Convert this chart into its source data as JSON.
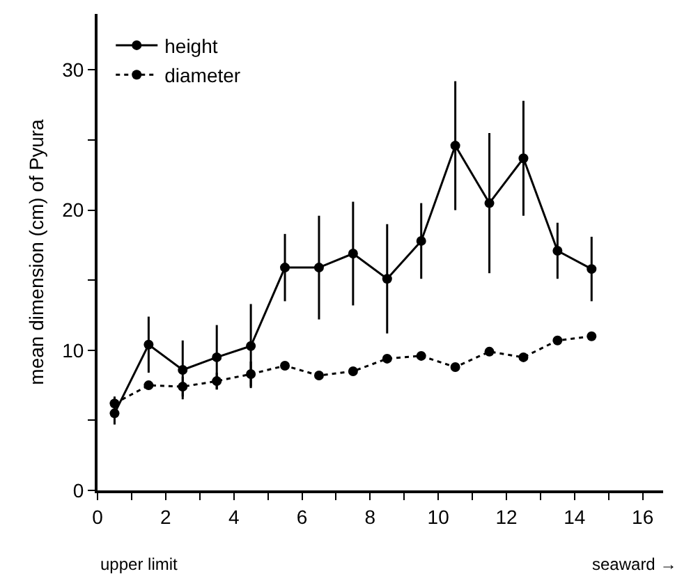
{
  "chart_data": {
    "type": "line",
    "ylabel": "mean dimension (cm) of Pyura",
    "x": [
      0.5,
      1.5,
      2.5,
      3.5,
      4.5,
      5.5,
      6.5,
      7.5,
      8.5,
      9.5,
      10.5,
      11.5,
      12.5,
      13.5,
      14.5
    ],
    "series": [
      {
        "name": "height",
        "color": "#000000",
        "line_style": "solid",
        "values": [
          5.5,
          10.4,
          8.6,
          9.5,
          10.3,
          15.9,
          15.9,
          16.9,
          15.1,
          17.8,
          24.6,
          20.5,
          23.7,
          17.1,
          15.8
        ],
        "errors": [
          0.8,
          2.0,
          2.1,
          2.3,
          3.0,
          2.4,
          3.7,
          3.7,
          3.9,
          2.7,
          4.6,
          5.0,
          4.1,
          2.0,
          2.3
        ]
      },
      {
        "name": "diameter",
        "color": "#000000",
        "line_style": "dotted",
        "values": [
          6.2,
          7.5,
          7.4,
          7.8,
          8.3,
          8.9,
          8.2,
          8.5,
          9.4,
          9.6,
          8.8,
          9.9,
          9.5,
          10.7,
          11.0
        ],
        "errors": [
          0.5,
          null,
          0.7,
          0.6,
          0.9,
          null,
          null,
          null,
          null,
          null,
          null,
          null,
          null,
          null,
          null
        ]
      }
    ],
    "xlim": [
      0,
      16.6
    ],
    "xticks": [
      0,
      {
        "value": 1,
        "label": null
      },
      2,
      {
        "value": 3,
        "label": null
      },
      4,
      {
        "value": 5,
        "label": null
      },
      6,
      {
        "value": 7,
        "label": null
      },
      8,
      {
        "value": 9,
        "label": null
      },
      10,
      {
        "value": 11,
        "label": null
      },
      12,
      {
        "value": 13,
        "label": null
      },
      14,
      {
        "value": 15,
        "label": null
      },
      16
    ],
    "ylim": [
      0,
      34
    ],
    "yticks": [
      0,
      {
        "value": 5,
        "label": null
      },
      10,
      {
        "value": 15,
        "label": null
      },
      20,
      {
        "value": 25,
        "label": null
      },
      30
    ],
    "marker": "circle",
    "grid": false,
    "legend": "top left",
    "annotations": [
      "upper limit",
      "seaward →"
    ]
  }
}
